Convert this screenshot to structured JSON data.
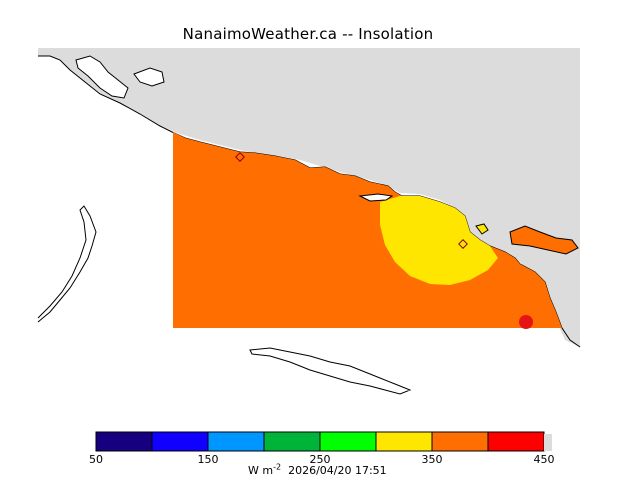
{
  "title": "NanaimoWeather.ca -- Insolation",
  "units": {
    "prefix": "W m",
    "exponent": "-2"
  },
  "timestamp": "2026/04/20 17:51",
  "colorbar": {
    "colors": [
      "#16007f",
      "#0f00ff",
      "#0096ff",
      "#00b43a",
      "#00ff00",
      "#ffe600",
      "#ff6e00",
      "#ff0000"
    ],
    "tick_labels": [
      "50",
      "150",
      "250",
      "350",
      "450"
    ]
  },
  "map": {
    "land_color": "#dcdcdc",
    "water_color": "#ffffff",
    "field_orange": "#ff6e00",
    "field_yellow": "#ffe600",
    "field_red": "#e61414"
  }
}
